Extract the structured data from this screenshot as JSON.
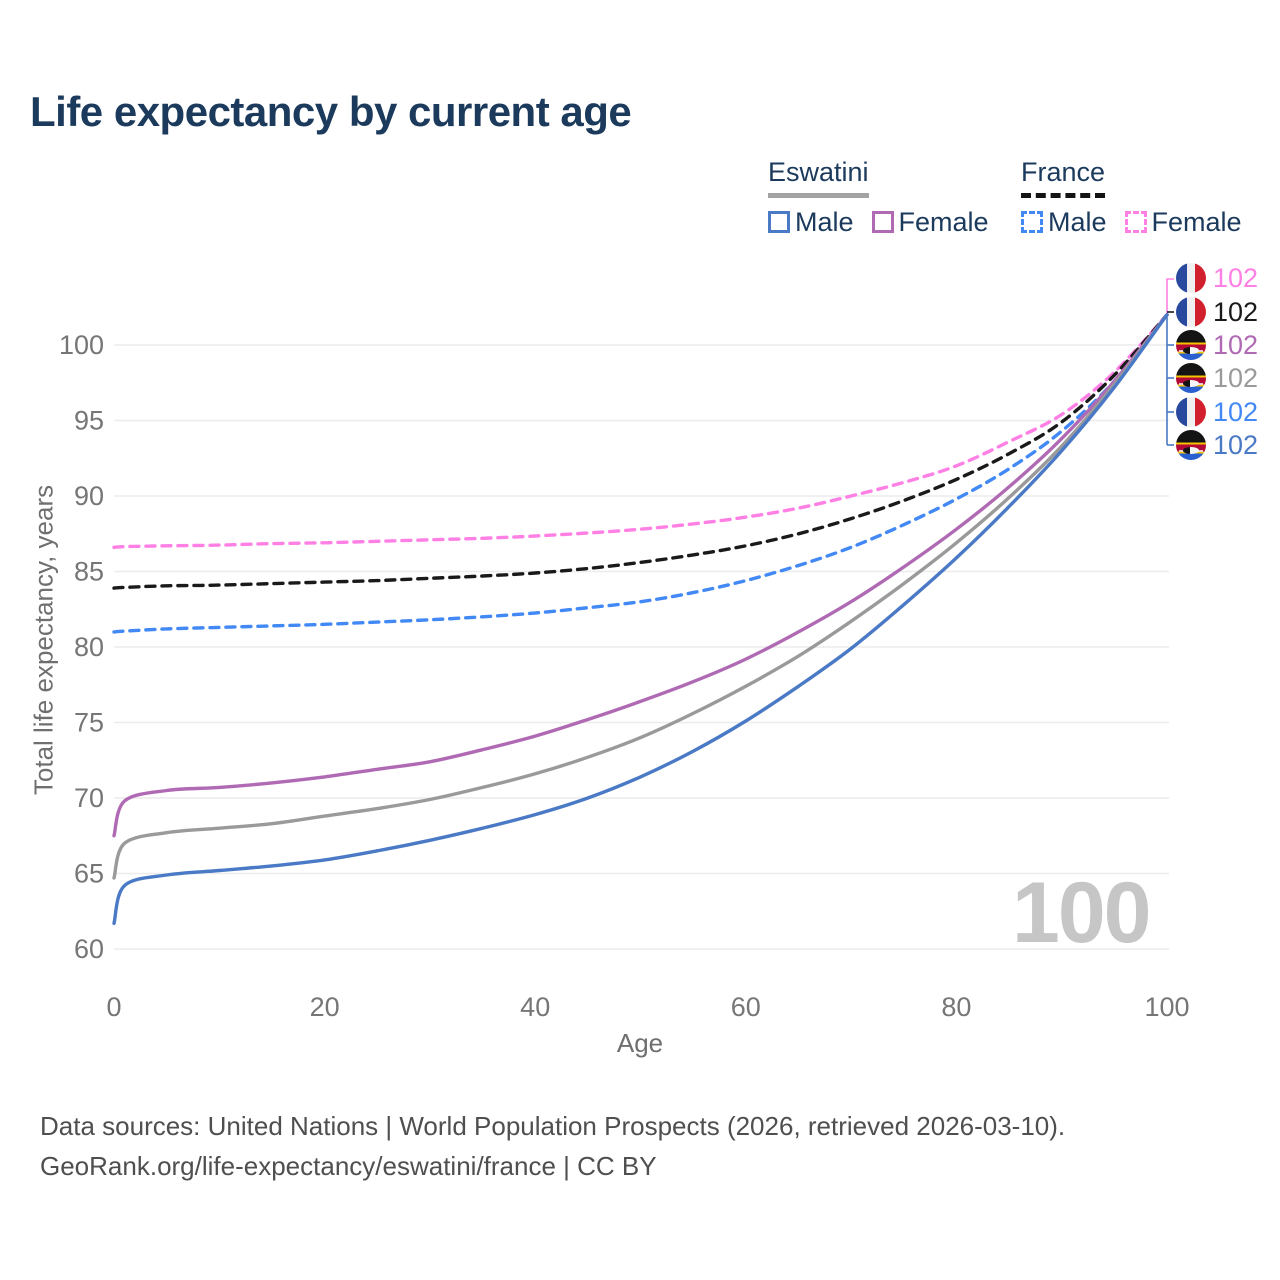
{
  "title": "Life expectancy by current age",
  "legend": {
    "groups": [
      {
        "label": "Eswatini",
        "line_style": "solid",
        "underline_color": "#a3a3a3",
        "items": [
          {
            "label": "Male",
            "color": "#4a79c5"
          },
          {
            "label": "Female",
            "color": "#b06ab4"
          }
        ]
      },
      {
        "label": "France",
        "line_style": "dashed",
        "underline_color": "#141414",
        "items": [
          {
            "label": "Male",
            "color": "#4289f5"
          },
          {
            "label": "Female",
            "color": "#ff80e5"
          }
        ]
      }
    ]
  },
  "watermark": {
    "value": "100"
  },
  "right_labels": [
    {
      "series": "France Female",
      "flag": "france",
      "value": "102",
      "color": "#ff80e5"
    },
    {
      "series": "France",
      "flag": "france",
      "value": "102",
      "color": "#1a1a1a"
    },
    {
      "series": "Eswatini Female",
      "flag": "eswatini",
      "value": "102",
      "color": "#b06ab4"
    },
    {
      "series": "Eswatini",
      "flag": "eswatini",
      "value": "102",
      "color": "#9a9a9a"
    },
    {
      "series": "France Male",
      "flag": "france",
      "value": "102",
      "color": "#4289f5"
    },
    {
      "series": "Eswatini Male",
      "flag": "eswatini",
      "value": "102",
      "color": "#4a79c5"
    }
  ],
  "footer": {
    "line1": "Data sources: United Nations | World Population Prospects (2026, retrieved 2026-03-10).",
    "line2": "GeoRank.org/life-expectancy/eswatini/france | CC BY"
  },
  "chart_data": {
    "type": "line",
    "title": "Life expectancy by current age",
    "xlabel": "Age",
    "ylabel": "Total life expectancy, years",
    "xlim": [
      0,
      100
    ],
    "ylim": [
      58.5,
      103
    ],
    "xticks": [
      0,
      20,
      40,
      60,
      80,
      100
    ],
    "yticks": [
      60,
      65,
      70,
      75,
      80,
      85,
      90,
      95,
      100
    ],
    "grid": "horizontal-only",
    "legend_position": "top-right",
    "x": [
      0,
      1,
      5,
      10,
      15,
      20,
      25,
      30,
      35,
      40,
      45,
      50,
      55,
      60,
      65,
      70,
      75,
      80,
      85,
      90,
      95,
      100
    ],
    "series": [
      {
        "name": "France Female",
        "country": "France",
        "sex": "Female",
        "color": "#ff80e5",
        "dashed": true,
        "values": [
          86.6,
          86.65,
          86.7,
          86.75,
          86.85,
          86.9,
          87.0,
          87.1,
          87.2,
          87.35,
          87.55,
          87.8,
          88.15,
          88.6,
          89.2,
          90.0,
          90.9,
          92.0,
          93.6,
          95.4,
          98.2,
          102
        ]
      },
      {
        "name": "France",
        "country": "France",
        "sex": "Both",
        "color": "#1a1a1a",
        "dashed": true,
        "values": [
          83.9,
          83.95,
          84.05,
          84.1,
          84.2,
          84.3,
          84.4,
          84.55,
          84.7,
          84.9,
          85.2,
          85.6,
          86.1,
          86.7,
          87.5,
          88.5,
          89.7,
          91.1,
          92.8,
          94.9,
          98.0,
          102
        ]
      },
      {
        "name": "France Male",
        "country": "France",
        "sex": "Male",
        "color": "#4289f5",
        "dashed": true,
        "values": [
          81.0,
          81.05,
          81.2,
          81.3,
          81.4,
          81.5,
          81.65,
          81.8,
          82.0,
          82.25,
          82.6,
          83.0,
          83.6,
          84.4,
          85.4,
          86.6,
          88.1,
          89.8,
          91.8,
          94.3,
          97.6,
          102
        ]
      },
      {
        "name": "Eswatini Female",
        "country": "Eswatini",
        "sex": "Female",
        "color": "#b06ab4",
        "dashed": false,
        "values": [
          67.5,
          69.8,
          70.5,
          70.7,
          71.0,
          71.4,
          71.9,
          72.4,
          73.2,
          74.1,
          75.2,
          76.4,
          77.7,
          79.2,
          81.0,
          83.0,
          85.3,
          87.8,
          90.6,
          93.8,
          97.6,
          102
        ]
      },
      {
        "name": "Eswatini",
        "country": "Eswatini",
        "sex": "Both",
        "color": "#9a9a9a",
        "dashed": false,
        "values": [
          64.7,
          67.0,
          67.7,
          68.0,
          68.3,
          68.8,
          69.3,
          69.9,
          70.7,
          71.6,
          72.7,
          74.0,
          75.6,
          77.4,
          79.4,
          81.7,
          84.2,
          86.9,
          89.9,
          93.3,
          97.4,
          102
        ]
      },
      {
        "name": "Eswatini Male",
        "country": "Eswatini",
        "sex": "Male",
        "color": "#4a79c5",
        "dashed": false,
        "values": [
          61.7,
          64.2,
          64.9,
          65.2,
          65.5,
          65.9,
          66.5,
          67.2,
          68.0,
          68.9,
          70.0,
          71.4,
          73.1,
          75.1,
          77.4,
          79.9,
          82.8,
          85.9,
          89.3,
          93.0,
          97.2,
          102
        ]
      }
    ],
    "end_labels_value": 102,
    "colors": {
      "grid": "#ececec",
      "axis_text": "#767676",
      "title_text": "#1b3a5c",
      "watermark": "#c6c6c6"
    }
  }
}
